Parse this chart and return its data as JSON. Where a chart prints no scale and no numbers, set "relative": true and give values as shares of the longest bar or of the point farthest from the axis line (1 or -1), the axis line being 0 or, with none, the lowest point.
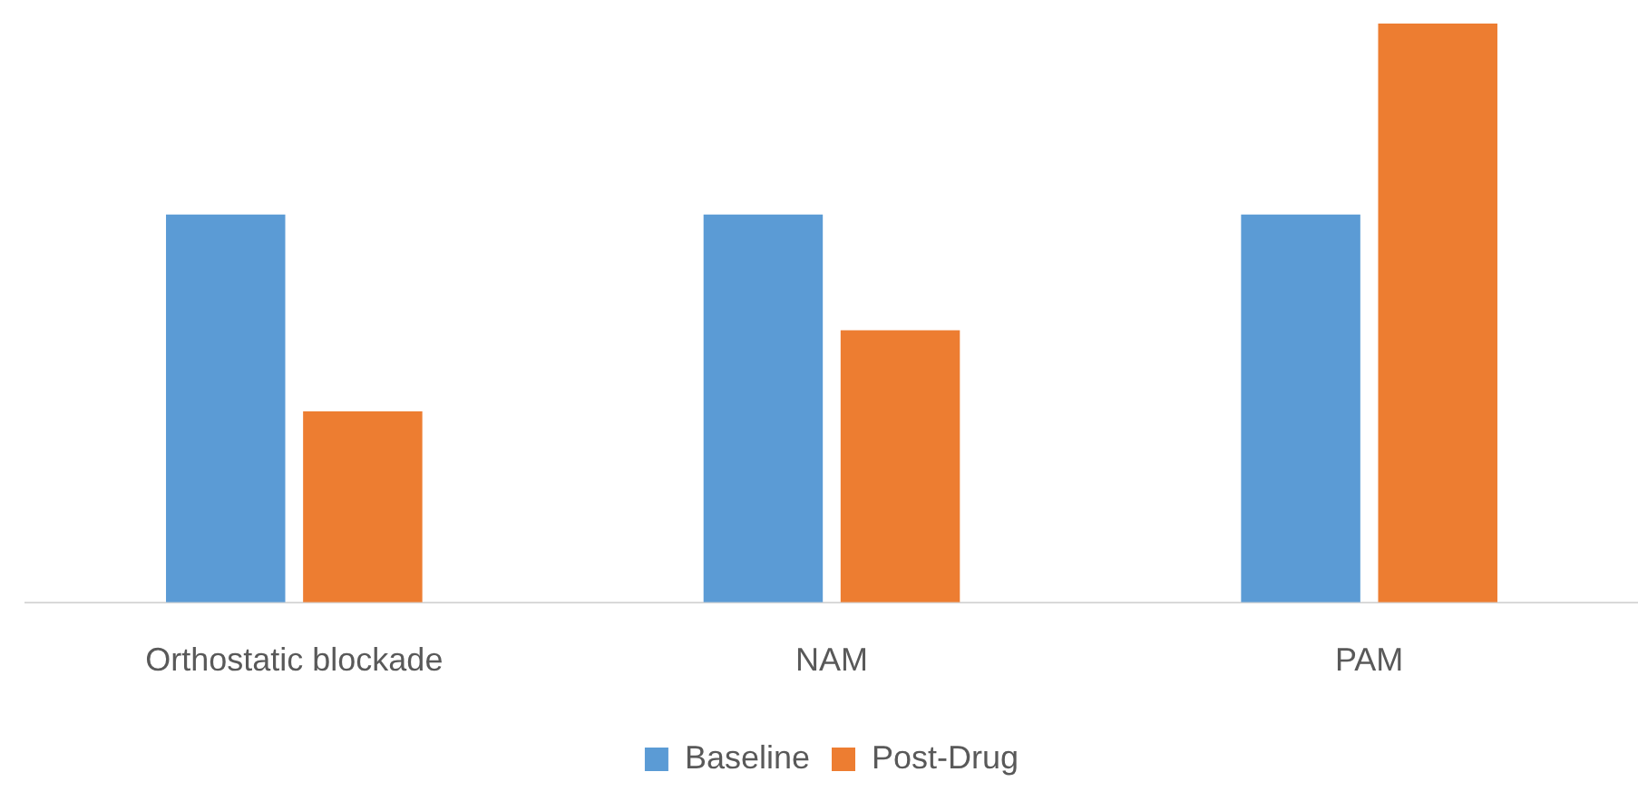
{
  "chart_data": {
    "type": "bar",
    "relative": true,
    "categories": [
      "Orthostatic blockade",
      "NAM",
      "PAM"
    ],
    "series": [
      {
        "name": "Baseline",
        "color": "#5b9bd5",
        "values": [
          0.67,
          0.67,
          0.67
        ]
      },
      {
        "name": "Post-Drug",
        "color": "#ed7d31",
        "values": [
          0.33,
          0.47,
          1
        ]
      }
    ],
    "legend": "bottom",
    "grid": false
  }
}
